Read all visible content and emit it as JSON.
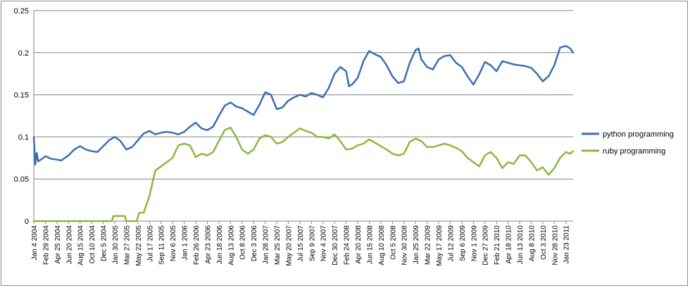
{
  "chart_data": {
    "type": "line",
    "title": "",
    "xlabel": "",
    "ylabel": "",
    "ylim": [
      0,
      0.25
    ],
    "yticks": [
      "0",
      "0.05",
      "0.1",
      "0.15",
      "0.2",
      "0.25"
    ],
    "grid": true,
    "legend_position": "right",
    "x_start": "Jan 4 2004",
    "x_end": "Feb 27 2011",
    "x_tick_labels": [
      "Jan 4 2004",
      "Feb 29 2004",
      "Apr 25 2004",
      "Jun 20 2004",
      "Aug 15 2004",
      "Oct 10 2004",
      "Dec 5 2004",
      "Jan 30 2005",
      "Mar 27 2005",
      "May 22 2005",
      "Jul 17 2005",
      "Sep 11 2005",
      "Nov 6 2005",
      "Jan 1 2006",
      "Feb 26 2006",
      "Apr 23 2006",
      "Jun 18 2006",
      "Aug 13 2006",
      "Oct 8 2006",
      "Dec 3 2006",
      "Jan 28 2007",
      "Mar 25 2007",
      "May 20 2007",
      "Jul 15 2007",
      "Sep 9 2007",
      "Nov 4 2007",
      "Dec 30 2007",
      "Feb 24 2008",
      "Apr 20 2008",
      "Jun 15 2008",
      "Aug 10 2008",
      "Oct 5 2008",
      "Nov 30 2008",
      "Jan 25 2009",
      "Mar 22 2009",
      "May 17 2009",
      "Jul 12 2009",
      "Sep 6 2009",
      "Nov 1 2009",
      "Dec 27 2009",
      "Feb 21 2010",
      "Apr 18 2010",
      "Jun 13 2010",
      "Aug 8 2010",
      "Oct 3 2010",
      "Nov 28 2010",
      "Jan 23 2011"
    ],
    "series": [
      {
        "name": "python programming",
        "color": "#3b6fb0",
        "points": [
          [
            "Jan 4 2004",
            0.1
          ],
          [
            "Jan 11 2004",
            0.067
          ],
          [
            "Jan 18 2004",
            0.081
          ],
          [
            "Jan 25 2004",
            0.071
          ],
          [
            "Feb 8 2004",
            0.073
          ],
          [
            "Feb 29 2004",
            0.077
          ],
          [
            "Mar 28 2004",
            0.074
          ],
          [
            "Apr 25 2004",
            0.073
          ],
          [
            "May 16 2004",
            0.072
          ],
          [
            "Jun 20 2004",
            0.078
          ],
          [
            "Jul 18 2004",
            0.085
          ],
          [
            "Aug 15 2004",
            0.089
          ],
          [
            "Sep 12 2004",
            0.085
          ],
          [
            "Oct 10 2004",
            0.083
          ],
          [
            "Nov 7 2004",
            0.082
          ],
          [
            "Dec 5 2004",
            0.089
          ],
          [
            "Jan 2 2005",
            0.096
          ],
          [
            "Jan 30 2005",
            0.1
          ],
          [
            "Feb 27 2005",
            0.095
          ],
          [
            "Mar 27 2005",
            0.085
          ],
          [
            "Apr 24 2005",
            0.088
          ],
          [
            "May 22 2005",
            0.096
          ],
          [
            "Jun 19 2005",
            0.104
          ],
          [
            "Jul 17 2005",
            0.107
          ],
          [
            "Aug 14 2005",
            0.103
          ],
          [
            "Sep 11 2005",
            0.105
          ],
          [
            "Oct 9 2005",
            0.106
          ],
          [
            "Nov 6 2005",
            0.105
          ],
          [
            "Dec 4 2005",
            0.103
          ],
          [
            "Jan 1 2006",
            0.106
          ],
          [
            "Jan 29 2006",
            0.112
          ],
          [
            "Feb 26 2006",
            0.117
          ],
          [
            "Mar 26 2006",
            0.11
          ],
          [
            "Apr 23 2006",
            0.108
          ],
          [
            "May 21 2006",
            0.112
          ],
          [
            "Jun 18 2006",
            0.125
          ],
          [
            "Jul 16 2006",
            0.137
          ],
          [
            "Aug 13 2006",
            0.141
          ],
          [
            "Sep 10 2006",
            0.136
          ],
          [
            "Oct 8 2006",
            0.134
          ],
          [
            "Nov 5 2006",
            0.13
          ],
          [
            "Dec 3 2006",
            0.126
          ],
          [
            "Dec 31 2006",
            0.138
          ],
          [
            "Jan 28 2007",
            0.153
          ],
          [
            "Feb 25 2007",
            0.15
          ],
          [
            "Mar 25 2007",
            0.133
          ],
          [
            "Apr 22 2007",
            0.135
          ],
          [
            "May 20 2007",
            0.143
          ],
          [
            "Jun 17 2007",
            0.147
          ],
          [
            "Jul 15 2007",
            0.15
          ],
          [
            "Aug 12 2007",
            0.148
          ],
          [
            "Sep 9 2007",
            0.152
          ],
          [
            "Oct 7 2007",
            0.15
          ],
          [
            "Nov 4 2007",
            0.147
          ],
          [
            "Dec 2 2007",
            0.158
          ],
          [
            "Dec 30 2007",
            0.175
          ],
          [
            "Jan 27 2008",
            0.183
          ],
          [
            "Feb 24 2008",
            0.178
          ],
          [
            "Mar 9 2008",
            0.16
          ],
          [
            "Mar 23 2008",
            0.162
          ],
          [
            "Apr 20 2008",
            0.17
          ],
          [
            "May 18 2008",
            0.19
          ],
          [
            "Jun 15 2008",
            0.202
          ],
          [
            "Jul 13 2008",
            0.198
          ],
          [
            "Aug 10 2008",
            0.195
          ],
          [
            "Sep 7 2008",
            0.185
          ],
          [
            "Oct 5 2008",
            0.172
          ],
          [
            "Nov 2 2008",
            0.164
          ],
          [
            "Nov 30 2008",
            0.166
          ],
          [
            "Dec 28 2008",
            0.188
          ],
          [
            "Jan 25 2009",
            0.203
          ],
          [
            "Feb 8 2009",
            0.205
          ],
          [
            "Feb 22 2009",
            0.192
          ],
          [
            "Mar 22 2009",
            0.183
          ],
          [
            "Apr 19 2009",
            0.18
          ],
          [
            "May 17 2009",
            0.192
          ],
          [
            "Jun 14 2009",
            0.196
          ],
          [
            "Jul 12 2009",
            0.197
          ],
          [
            "Aug 9 2009",
            0.188
          ],
          [
            "Sep 6 2009",
            0.183
          ],
          [
            "Oct 4 2009",
            0.172
          ],
          [
            "Nov 1 2009",
            0.162
          ],
          [
            "Nov 29 2009",
            0.174
          ],
          [
            "Dec 27 2009",
            0.189
          ],
          [
            "Jan 24 2010",
            0.185
          ],
          [
            "Feb 21 2010",
            0.178
          ],
          [
            "Mar 21 2010",
            0.19
          ],
          [
            "Apr 18 2010",
            0.188
          ],
          [
            "May 16 2010",
            0.186
          ],
          [
            "Jun 13 2010",
            0.185
          ],
          [
            "Jul 11 2010",
            0.184
          ],
          [
            "Aug 8 2010",
            0.182
          ],
          [
            "Sep 5 2010",
            0.175
          ],
          [
            "Oct 3 2010",
            0.166
          ],
          [
            "Oct 31 2010",
            0.172
          ],
          [
            "Nov 28 2010",
            0.185
          ],
          [
            "Dec 26 2010",
            0.206
          ],
          [
            "Jan 23 2011",
            0.208
          ],
          [
            "Feb 13 2011",
            0.205
          ],
          [
            "Feb 27 2011",
            0.2
          ]
        ]
      },
      {
        "name": "ruby programming",
        "color": "#8db83f",
        "points": [
          [
            "Jan 4 2004",
            0.0
          ],
          [
            "Dec 5 2004",
            0.0
          ],
          [
            "Jan 16 2005",
            0.0
          ],
          [
            "Jan 23 2005",
            0.006
          ],
          [
            "Mar 20 2005",
            0.006
          ],
          [
            "Mar 27 2005",
            0.0
          ],
          [
            "May 15 2005",
            0.0
          ],
          [
            "May 29 2005",
            0.01
          ],
          [
            "Jun 19 2005",
            0.01
          ],
          [
            "Jul 17 2005",
            0.03
          ],
          [
            "Aug 14 2005",
            0.06
          ],
          [
            "Sep 11 2005",
            0.065
          ],
          [
            "Oct 9 2005",
            0.07
          ],
          [
            "Nov 6 2005",
            0.075
          ],
          [
            "Dec 4 2005",
            0.09
          ],
          [
            "Jan 1 2006",
            0.092
          ],
          [
            "Jan 29 2006",
            0.09
          ],
          [
            "Feb 26 2006",
            0.076
          ],
          [
            "Mar 26 2006",
            0.08
          ],
          [
            "Apr 23 2006",
            0.078
          ],
          [
            "May 21 2006",
            0.082
          ],
          [
            "Jun 18 2006",
            0.095
          ],
          [
            "Jul 16 2006",
            0.108
          ],
          [
            "Aug 13 2006",
            0.111
          ],
          [
            "Sep 10 2006",
            0.1
          ],
          [
            "Oct 8 2006",
            0.085
          ],
          [
            "Nov 5 2006",
            0.08
          ],
          [
            "Dec 3 2006",
            0.085
          ],
          [
            "Dec 31 2006",
            0.098
          ],
          [
            "Jan 28 2007",
            0.102
          ],
          [
            "Feb 25 2007",
            0.1
          ],
          [
            "Mar 25 2007",
            0.092
          ],
          [
            "Apr 22 2007",
            0.094
          ],
          [
            "May 20 2007",
            0.1
          ],
          [
            "Jun 17 2007",
            0.105
          ],
          [
            "Jul 15 2007",
            0.11
          ],
          [
            "Aug 12 2007",
            0.107
          ],
          [
            "Sep 9 2007",
            0.105
          ],
          [
            "Oct 7 2007",
            0.1
          ],
          [
            "Nov 4 2007",
            0.1
          ],
          [
            "Dec 2 2007",
            0.098
          ],
          [
            "Dec 30 2007",
            0.103
          ],
          [
            "Jan 27 2008",
            0.095
          ],
          [
            "Feb 24 2008",
            0.085
          ],
          [
            "Mar 23 2008",
            0.086
          ],
          [
            "Apr 20 2008",
            0.09
          ],
          [
            "May 18 2008",
            0.092
          ],
          [
            "Jun 15 2008",
            0.097
          ],
          [
            "Jul 13 2008",
            0.093
          ],
          [
            "Aug 10 2008",
            0.089
          ],
          [
            "Sep 7 2008",
            0.085
          ],
          [
            "Oct 5 2008",
            0.08
          ],
          [
            "Nov 2 2008",
            0.078
          ],
          [
            "Nov 30 2008",
            0.08
          ],
          [
            "Dec 28 2008",
            0.094
          ],
          [
            "Jan 25 2009",
            0.098
          ],
          [
            "Feb 22 2009",
            0.095
          ],
          [
            "Mar 22 2009",
            0.088
          ],
          [
            "Apr 19 2009",
            0.088
          ],
          [
            "May 17 2009",
            0.09
          ],
          [
            "Jun 14 2009",
            0.092
          ],
          [
            "Jul 12 2009",
            0.09
          ],
          [
            "Aug 9 2009",
            0.087
          ],
          [
            "Sep 6 2009",
            0.083
          ],
          [
            "Oct 4 2009",
            0.075
          ],
          [
            "Nov 1 2009",
            0.07
          ],
          [
            "Nov 29 2009",
            0.065
          ],
          [
            "Dec 27 2009",
            0.078
          ],
          [
            "Jan 24 2010",
            0.082
          ],
          [
            "Feb 21 2010",
            0.075
          ],
          [
            "Mar 21 2010",
            0.063
          ],
          [
            "Apr 18 2010",
            0.07
          ],
          [
            "May 16 2010",
            0.068
          ],
          [
            "Jun 13 2010",
            0.078
          ],
          [
            "Jul 11 2010",
            0.078
          ],
          [
            "Aug 8 2010",
            0.07
          ],
          [
            "Sep 5 2010",
            0.06
          ],
          [
            "Oct 3 2010",
            0.064
          ],
          [
            "Oct 31 2010",
            0.055
          ],
          [
            "Nov 28 2010",
            0.063
          ],
          [
            "Dec 26 2010",
            0.075
          ],
          [
            "Jan 23 2011",
            0.082
          ],
          [
            "Feb 13 2011",
            0.08
          ],
          [
            "Feb 27 2011",
            0.083
          ]
        ]
      }
    ]
  }
}
